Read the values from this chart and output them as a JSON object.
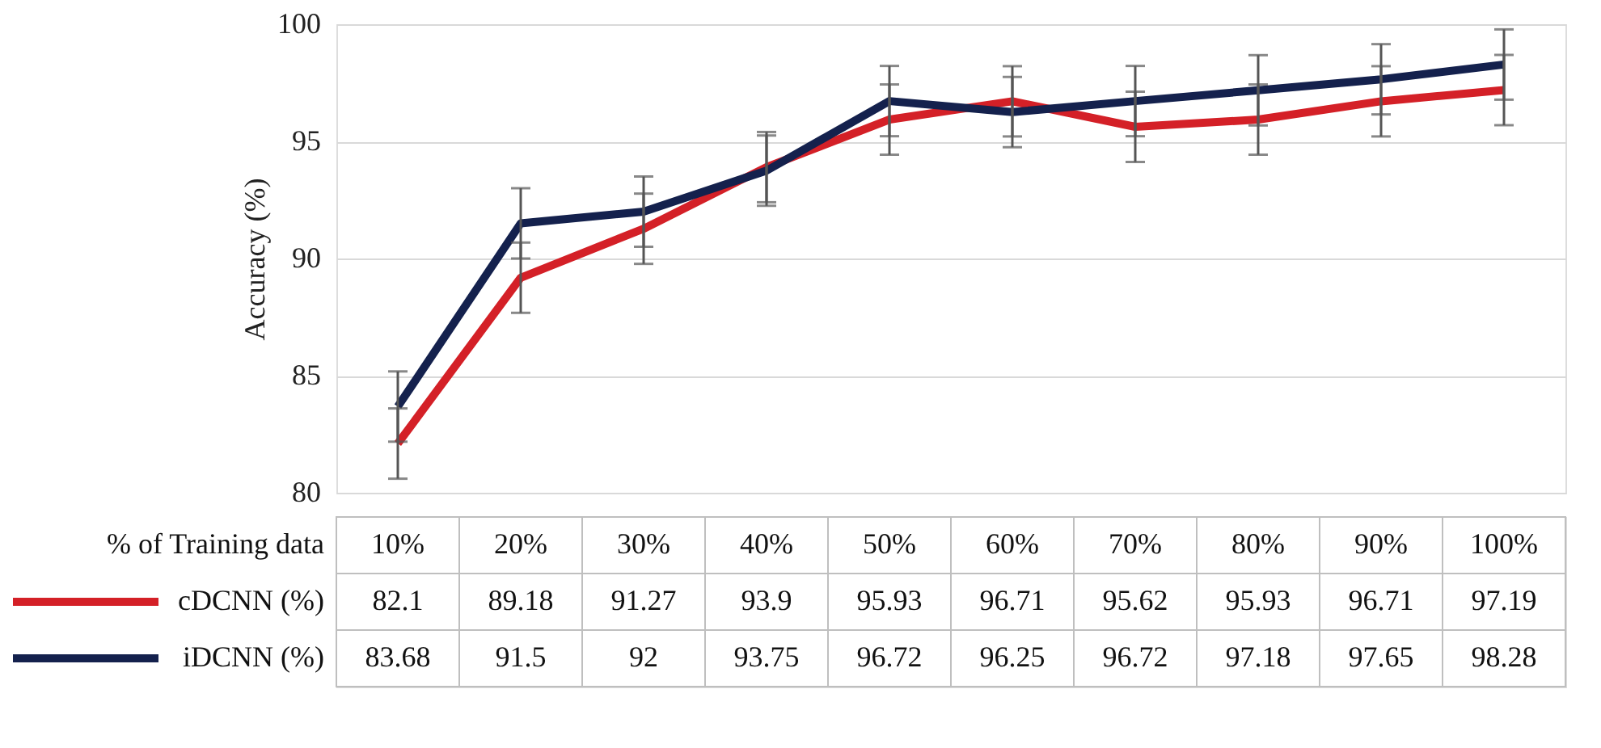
{
  "chart_data": {
    "type": "line",
    "ylabel": "Accuracy (%)",
    "xlabel": "% of Training data",
    "categories": [
      "10%",
      "20%",
      "30%",
      "40%",
      "50%",
      "60%",
      "70%",
      "80%",
      "90%",
      "100%"
    ],
    "series": [
      {
        "name": "cDCNN (%)",
        "color": "#d42027",
        "values": [
          82.1,
          89.18,
          91.27,
          93.9,
          95.93,
          96.71,
          95.62,
          95.93,
          96.71,
          97.19
        ],
        "errors": [
          1.5,
          1.5,
          1.5,
          1.5,
          1.5,
          1.5,
          1.5,
          1.5,
          1.5,
          1.5
        ]
      },
      {
        "name": "iDCNN (%)",
        "color": "#14214d",
        "values": [
          83.68,
          91.5,
          92,
          93.75,
          96.72,
          96.25,
          96.72,
          97.18,
          97.65,
          98.28
        ],
        "errors": [
          1.5,
          1.5,
          1.5,
          1.5,
          1.5,
          1.5,
          1.5,
          1.5,
          1.5,
          1.5
        ]
      }
    ],
    "ylim": [
      80,
      100
    ],
    "yticks": [
      80,
      85,
      90,
      95,
      100
    ],
    "grid": "y",
    "legend": "bottom left",
    "tick_labels": "y",
    "data_labels": true,
    "marker": "none",
    "line_style": "solid"
  }
}
